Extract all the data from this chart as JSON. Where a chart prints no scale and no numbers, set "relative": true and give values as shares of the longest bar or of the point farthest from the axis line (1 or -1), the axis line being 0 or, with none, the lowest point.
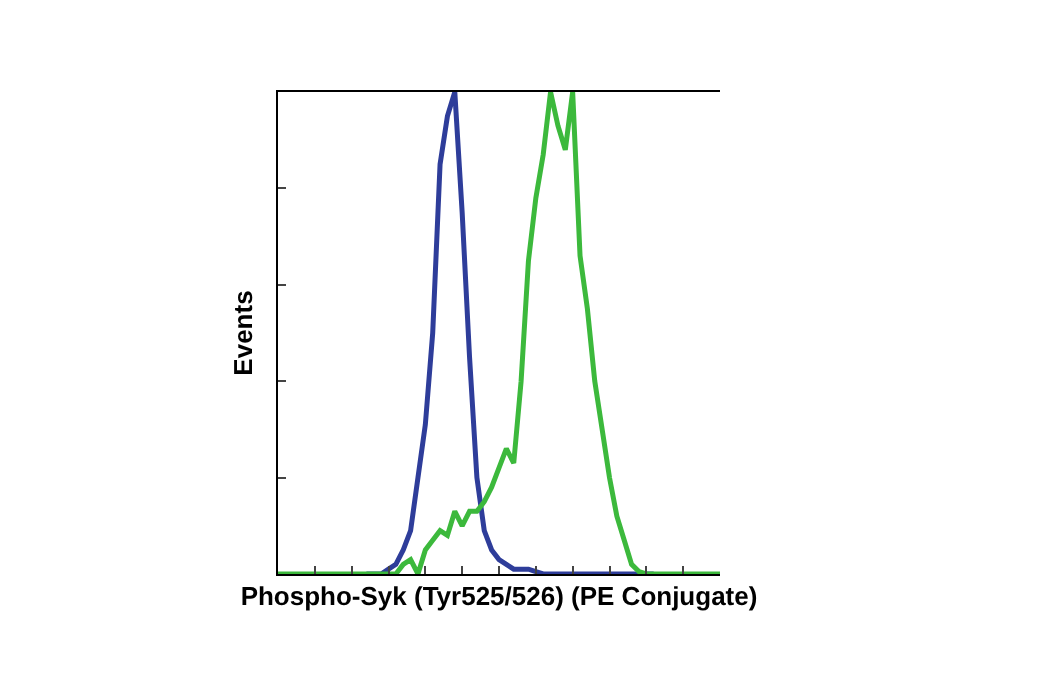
{
  "chart_data": {
    "type": "line",
    "relative": true,
    "xlabel": "Phospho-Syk (Tyr525/526) (PE Conjugate)",
    "ylabel": "Events",
    "tick_labels": false,
    "categories": [
      null,
      null,
      null,
      null,
      null,
      null,
      null,
      null,
      null,
      null,
      null,
      null,
      null,
      null,
      null,
      null,
      null,
      null,
      null,
      null,
      null,
      null,
      null,
      null,
      null,
      null,
      null,
      null,
      null,
      null,
      null,
      null,
      null,
      null,
      null,
      null,
      null,
      null,
      null,
      null,
      null,
      null,
      null,
      null,
      null,
      null,
      null,
      null,
      null,
      null,
      null,
      null,
      null,
      null,
      null,
      null,
      null,
      null,
      null,
      null,
      null
    ],
    "series": [
      {
        "color": "#2e3d9a",
        "values": [
          null,
          null,
          null,
          null,
          null,
          null,
          null,
          null,
          null,
          null,
          null,
          null,
          0,
          0,
          0,
          0.01,
          0.02,
          0.05,
          0.09,
          0.2,
          0.31,
          0.5,
          0.85,
          0.95,
          1.0,
          0.75,
          0.45,
          0.2,
          0.09,
          0.05,
          0.03,
          0.02,
          0.01,
          0.01,
          0.01,
          0.005,
          0,
          0,
          0,
          0,
          0,
          0,
          0,
          0,
          0,
          0,
          0,
          0,
          0,
          0,
          0,
          0,
          null,
          null,
          null,
          null,
          null,
          null,
          null,
          null,
          null
        ]
      },
      {
        "color": "#3cb93c",
        "values": [
          0,
          0,
          0,
          0,
          0,
          0,
          0,
          0,
          0,
          0,
          0,
          0,
          0,
          0,
          0,
          0,
          0,
          0.02,
          0.03,
          0.0,
          0.05,
          0.07,
          0.09,
          0.08,
          0.13,
          0.1,
          0.13,
          0.13,
          0.15,
          0.18,
          0.22,
          0.26,
          0.23,
          0.4,
          0.65,
          0.78,
          0.87,
          1.0,
          0.93,
          0.88,
          1.0,
          0.66,
          0.55,
          0.4,
          0.3,
          0.2,
          0.12,
          0.07,
          0.02,
          0.005,
          0,
          0,
          0,
          0,
          0,
          0,
          0,
          0,
          0,
          0,
          0
        ]
      }
    ]
  }
}
